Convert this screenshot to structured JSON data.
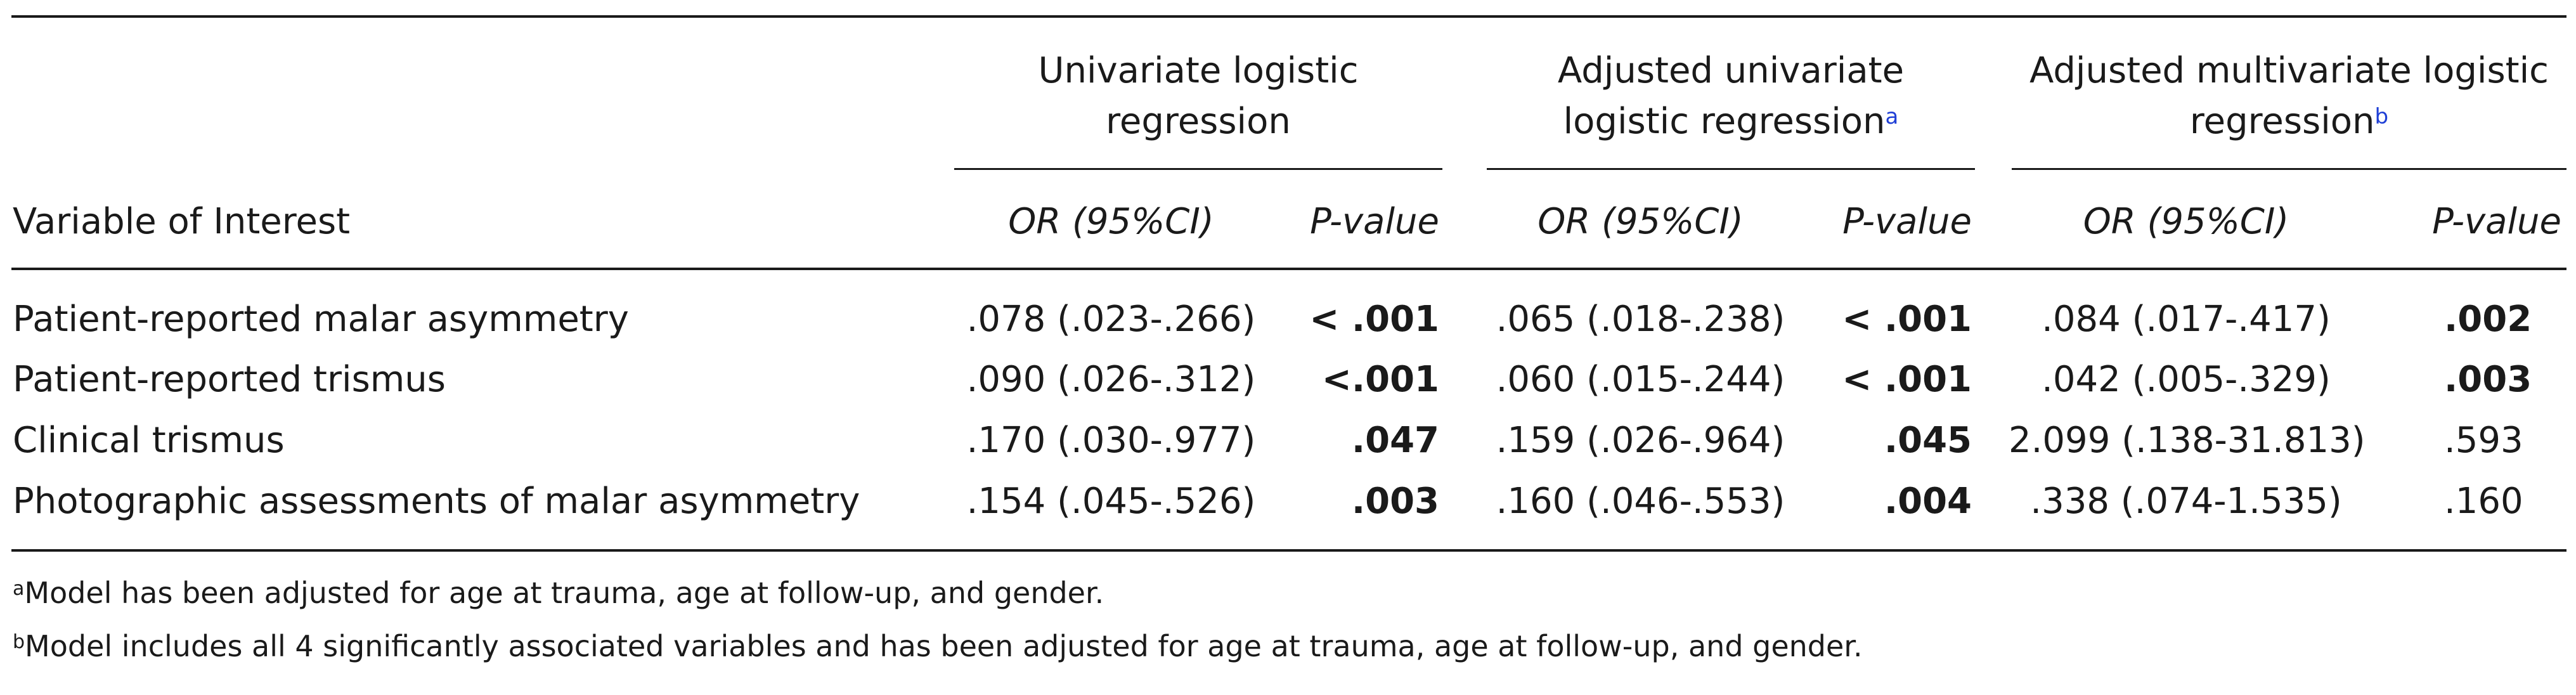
{
  "table": {
    "stub_header": "Variable of Interest",
    "groups": [
      {
        "label_line1": "Univariate logistic",
        "label_line2": "regression",
        "footnote": ""
      },
      {
        "label_line1": "Adjusted univariate",
        "label_line2": "logistic regression",
        "footnote": "a"
      },
      {
        "label_line1": "Adjusted multivariate logistic",
        "label_line2": "regression",
        "footnote": "b"
      }
    ],
    "subheaders": {
      "or": "OR (95%CI)",
      "p": "P-value"
    },
    "rows": [
      {
        "variable": "Patient-reported malar asymmetry",
        "cells": [
          {
            "or": ".078 (.023-.266)",
            "p": "< .001",
            "sig": true
          },
          {
            "or": ".065 (.018-.238)",
            "p": "< .001",
            "sig": true
          },
          {
            "or": ".084 (.017-.417)",
            "p": ".002",
            "sig": true
          }
        ]
      },
      {
        "variable": "Patient-reported trismus",
        "cells": [
          {
            "or": ".090 (.026-.312)",
            "p": "<.001",
            "sig": true
          },
          {
            "or": ".060 (.015-.244)",
            "p": "< .001",
            "sig": true
          },
          {
            "or": ".042 (.005-.329)",
            "p": ".003",
            "sig": true
          }
        ]
      },
      {
        "variable": "Clinical trismus",
        "cells": [
          {
            "or": ".170 (.030-.977)",
            "p": ".047",
            "sig": true
          },
          {
            "or": ".159 (.026-.964)",
            "p": ".045",
            "sig": true
          },
          {
            "or": "2.099 (.138-31.813)",
            "p": ".593",
            "sig": false
          }
        ]
      },
      {
        "variable": "Photographic assessments of malar asymmetry",
        "cells": [
          {
            "or": ".154 (.045-.526)",
            "p": ".003",
            "sig": true
          },
          {
            "or": ".160 (.046-.553)",
            "p": ".004",
            "sig": true
          },
          {
            "or": ".338 (.074-1.535)",
            "p": ".160",
            "sig": false
          }
        ]
      }
    ],
    "footnotes": [
      {
        "mark": "a",
        "text": "Model has been adjusted for age at trauma, age at follow-up, and gender."
      },
      {
        "mark": "b",
        "text": "Model includes all 4 significantly associated variables and has been adjusted for age at trauma, age at follow-up, and gender."
      }
    ]
  },
  "colors": {
    "text": "#1a1a1a",
    "footnote_mark": "#1f3fd6"
  }
}
